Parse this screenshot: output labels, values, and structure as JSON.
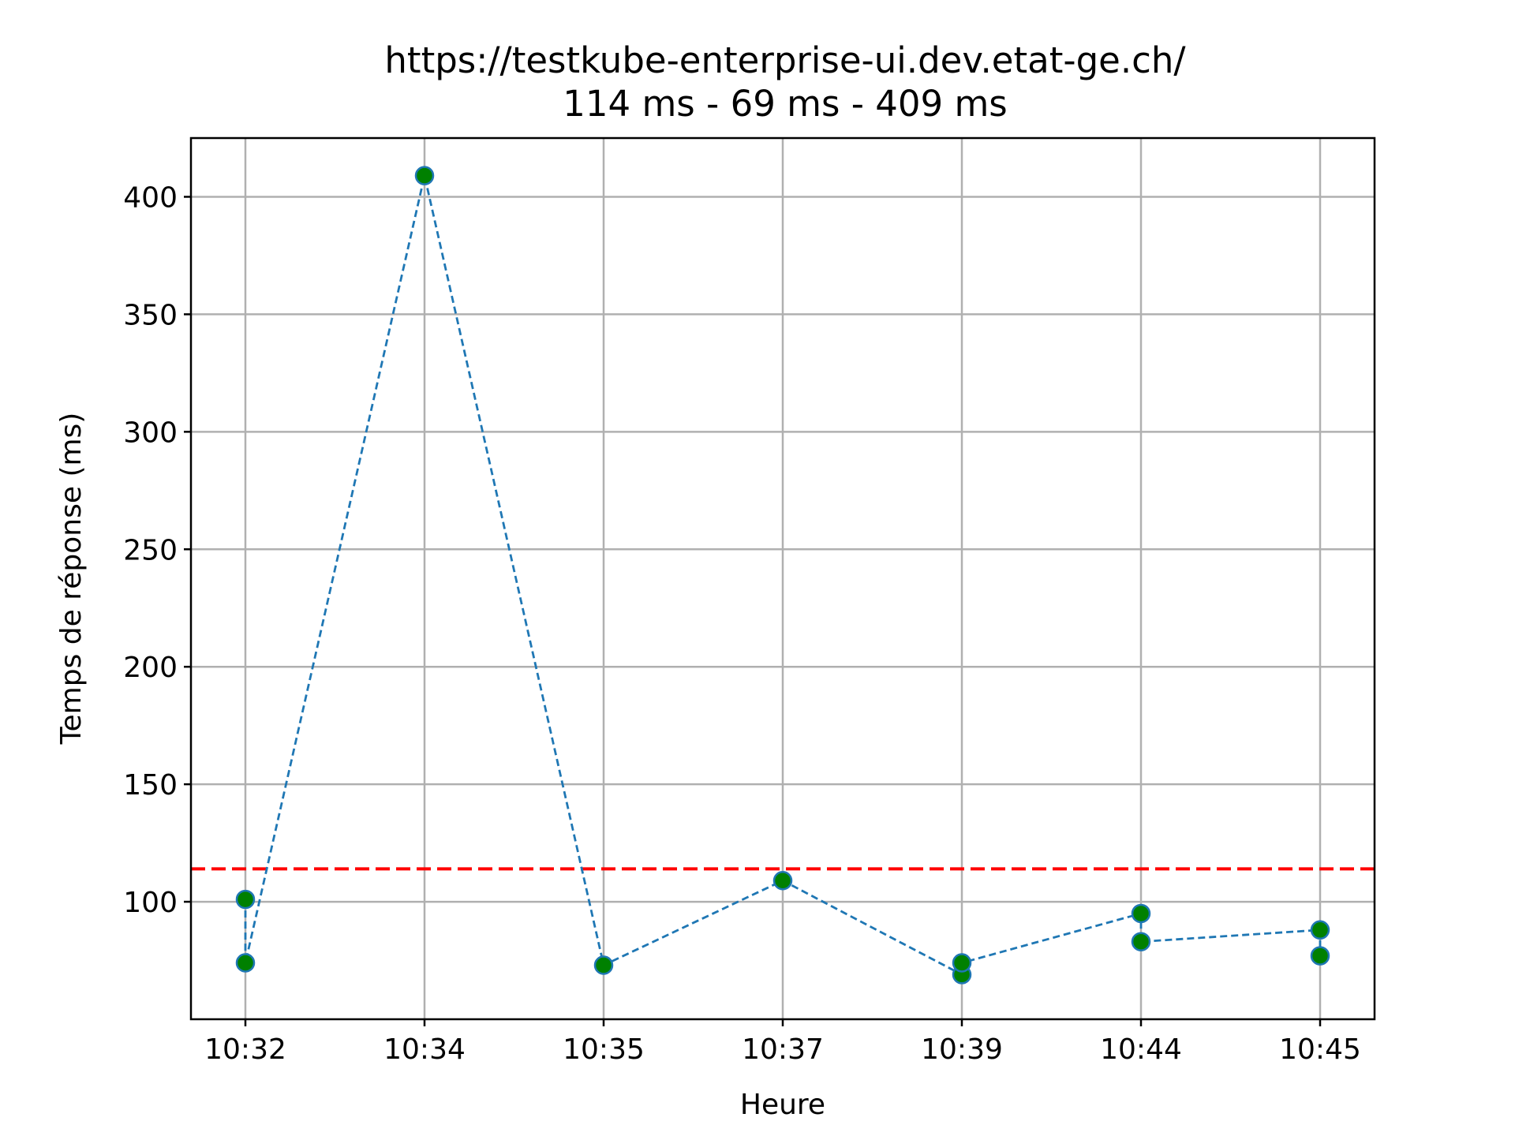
{
  "chart_data": {
    "type": "line",
    "title": "https://testkube-enterprise-ui.dev.etat-ge.ch/",
    "subtitle": "114 ms  - 69 ms  - 409 ms",
    "xlabel": "Heure",
    "ylabel": "Temps de réponse (ms)",
    "x_tick_labels": [
      "10:32",
      "10:34",
      "10:35",
      "10:37",
      "10:39",
      "10:44",
      "10:45"
    ],
    "y_ticks": [
      100,
      150,
      200,
      250,
      300,
      350,
      400
    ],
    "ylim": [
      50,
      425
    ],
    "grid": true,
    "series": [
      {
        "points": [
          {
            "x": "10:32",
            "y": 101
          },
          {
            "x": "10:32",
            "y": 74
          },
          {
            "x": "10:34",
            "y": 409
          },
          {
            "x": "10:35",
            "y": 73
          },
          {
            "x": "10:37",
            "y": 109
          },
          {
            "x": "10:39",
            "y": 69
          },
          {
            "x": "10:39",
            "y": 74
          },
          {
            "x": "10:44",
            "y": 95
          },
          {
            "x": "10:44",
            "y": 83
          },
          {
            "x": "10:45",
            "y": 88
          },
          {
            "x": "10:45",
            "y": 77
          }
        ],
        "line_color": "#1f77b4",
        "line_style": "dashed",
        "marker_face_color": "#008000",
        "marker_edge_color": "#1f77b4"
      }
    ],
    "reference_line": {
      "y": 114,
      "color": "#ff0000",
      "style": "dashed"
    }
  }
}
